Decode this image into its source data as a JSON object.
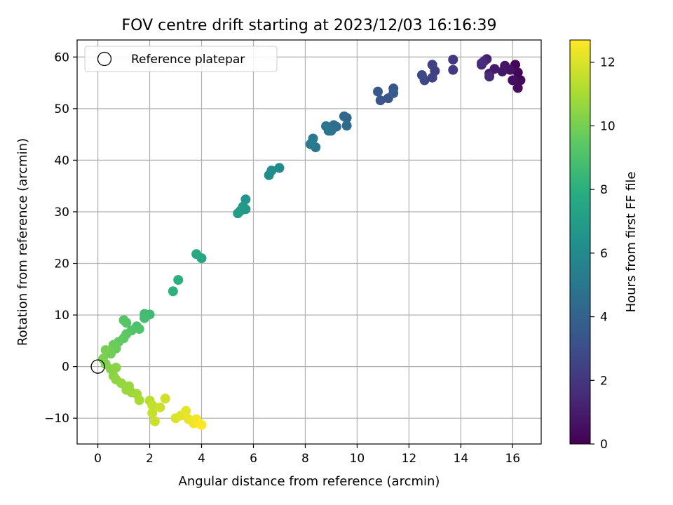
{
  "chart_data": {
    "type": "scatter",
    "title": "FOV centre drift starting at 2023/12/03 16:16:39",
    "xlabel": "Angular distance from reference (arcmin)",
    "ylabel": "Rotation from reference (arcmin)",
    "xlim": [
      -0.8,
      17.1
    ],
    "ylim": [
      -15,
      63.3
    ],
    "xticks": [
      0,
      2,
      4,
      6,
      8,
      10,
      12,
      14,
      16
    ],
    "yticks": [
      -10,
      0,
      10,
      20,
      30,
      40,
      50,
      60
    ],
    "ytick_labels": [
      "−10",
      "0",
      "10",
      "20",
      "30",
      "40",
      "50",
      "60"
    ],
    "grid": true,
    "legend": {
      "placement": "upper-left",
      "entries": [
        "Reference platepar"
      ]
    },
    "reference_point": {
      "x": 0,
      "y": 0,
      "label": "Reference platepar"
    },
    "colorbar": {
      "label": "Hours from first FF file",
      "colormap": "viridis",
      "range": [
        0,
        12.7
      ],
      "ticks": [
        0,
        2,
        4,
        6,
        8,
        10,
        12
      ]
    },
    "points": [
      {
        "x": 16.1,
        "y": 58.5,
        "c": 0.1
      },
      {
        "x": 16.2,
        "y": 57.0,
        "c": 0.2
      },
      {
        "x": 16.3,
        "y": 55.5,
        "c": 0.3
      },
      {
        "x": 16.2,
        "y": 54.0,
        "c": 0.4
      },
      {
        "x": 16.0,
        "y": 55.5,
        "c": 0.5
      },
      {
        "x": 15.9,
        "y": 57.5,
        "c": 0.6
      },
      {
        "x": 15.7,
        "y": 58.3,
        "c": 0.7
      },
      {
        "x": 15.6,
        "y": 57.2,
        "c": 0.8
      },
      {
        "x": 15.3,
        "y": 57.7,
        "c": 0.9
      },
      {
        "x": 15.1,
        "y": 56.8,
        "c": 1.0
      },
      {
        "x": 15.0,
        "y": 59.6,
        "c": 1.1
      },
      {
        "x": 14.8,
        "y": 58.5,
        "c": 1.2
      },
      {
        "x": 14.9,
        "y": 59.2,
        "c": 1.4
      },
      {
        "x": 15.1,
        "y": 56.2,
        "c": 1.5
      },
      {
        "x": 14.8,
        "y": 58.8,
        "c": 1.6
      },
      {
        "x": 13.7,
        "y": 59.5,
        "c": 2.0
      },
      {
        "x": 13.7,
        "y": 57.5,
        "c": 2.1
      },
      {
        "x": 13.0,
        "y": 57.3,
        "c": 2.3
      },
      {
        "x": 12.9,
        "y": 58.5,
        "c": 2.4
      },
      {
        "x": 12.9,
        "y": 56.0,
        "c": 2.5
      },
      {
        "x": 12.6,
        "y": 55.5,
        "c": 2.6
      },
      {
        "x": 12.5,
        "y": 56.5,
        "c": 2.8
      },
      {
        "x": 11.4,
        "y": 53.9,
        "c": 3.2
      },
      {
        "x": 11.2,
        "y": 52.0,
        "c": 3.3
      },
      {
        "x": 10.9,
        "y": 51.6,
        "c": 3.4
      },
      {
        "x": 10.8,
        "y": 53.3,
        "c": 3.5
      },
      {
        "x": 11.4,
        "y": 53.0,
        "c": 3.6
      },
      {
        "x": 9.6,
        "y": 48.2,
        "c": 4.2
      },
      {
        "x": 9.5,
        "y": 48.5,
        "c": 4.3
      },
      {
        "x": 9.6,
        "y": 46.7,
        "c": 4.4
      },
      {
        "x": 9.2,
        "y": 46.5,
        "c": 4.5
      },
      {
        "x": 9.1,
        "y": 46.8,
        "c": 4.6
      },
      {
        "x": 9.0,
        "y": 45.7,
        "c": 4.7
      },
      {
        "x": 8.9,
        "y": 45.7,
        "c": 4.8
      },
      {
        "x": 8.8,
        "y": 46.6,
        "c": 4.9
      },
      {
        "x": 8.4,
        "y": 42.5,
        "c": 5.0
      },
      {
        "x": 8.3,
        "y": 44.2,
        "c": 5.1
      },
      {
        "x": 8.2,
        "y": 43.1,
        "c": 5.2
      },
      {
        "x": 7.0,
        "y": 38.5,
        "c": 6.0
      },
      {
        "x": 6.7,
        "y": 38.0,
        "c": 6.1
      },
      {
        "x": 6.6,
        "y": 37.1,
        "c": 6.2
      },
      {
        "x": 5.7,
        "y": 32.4,
        "c": 6.6
      },
      {
        "x": 5.7,
        "y": 30.5,
        "c": 6.7
      },
      {
        "x": 5.6,
        "y": 31.0,
        "c": 6.8
      },
      {
        "x": 5.5,
        "y": 30.2,
        "c": 6.9
      },
      {
        "x": 5.4,
        "y": 29.7,
        "c": 7.0
      },
      {
        "x": 4.0,
        "y": 21.0,
        "c": 7.5
      },
      {
        "x": 3.8,
        "y": 21.8,
        "c": 7.6
      },
      {
        "x": 3.1,
        "y": 16.8,
        "c": 8.0
      },
      {
        "x": 2.9,
        "y": 14.6,
        "c": 8.1
      },
      {
        "x": 2.0,
        "y": 10.1,
        "c": 8.6
      },
      {
        "x": 1.8,
        "y": 10.2,
        "c": 8.7
      },
      {
        "x": 1.8,
        "y": 9.4,
        "c": 8.8
      },
      {
        "x": 1.5,
        "y": 7.8,
        "c": 9.0
      },
      {
        "x": 1.6,
        "y": 7.3,
        "c": 9.1
      },
      {
        "x": 1.3,
        "y": 7.0,
        "c": 9.2
      },
      {
        "x": 1.1,
        "y": 8.5,
        "c": 9.3
      },
      {
        "x": 1.0,
        "y": 9.0,
        "c": 9.3
      },
      {
        "x": 1.1,
        "y": 6.3,
        "c": 9.4
      },
      {
        "x": 1.0,
        "y": 5.5,
        "c": 9.5
      },
      {
        "x": 0.8,
        "y": 4.8,
        "c": 9.6
      },
      {
        "x": 0.7,
        "y": 3.5,
        "c": 9.7
      },
      {
        "x": 0.6,
        "y": 4.2,
        "c": 9.8
      },
      {
        "x": 0.5,
        "y": 2.5,
        "c": 9.9
      },
      {
        "x": 0.3,
        "y": 3.2,
        "c": 10.0
      },
      {
        "x": 0.2,
        "y": 1.5,
        "c": 10.1
      },
      {
        "x": 0.3,
        "y": 0.5,
        "c": 10.2
      },
      {
        "x": 0.5,
        "y": -0.5,
        "c": 10.3
      },
      {
        "x": 0.7,
        "y": -0.2,
        "c": 10.4
      },
      {
        "x": 0.6,
        "y": -1.8,
        "c": 10.4
      },
      {
        "x": 0.7,
        "y": -2.5,
        "c": 10.5
      },
      {
        "x": 0.9,
        "y": -3.2,
        "c": 10.6
      },
      {
        "x": 1.1,
        "y": -4.5,
        "c": 10.7
      },
      {
        "x": 1.2,
        "y": -3.8,
        "c": 10.7
      },
      {
        "x": 1.3,
        "y": -5.0,
        "c": 10.8
      },
      {
        "x": 1.5,
        "y": -5.3,
        "c": 10.9
      },
      {
        "x": 1.6,
        "y": -6.5,
        "c": 11.0
      },
      {
        "x": 2.0,
        "y": -6.6,
        "c": 11.4
      },
      {
        "x": 2.1,
        "y": -7.5,
        "c": 11.5
      },
      {
        "x": 2.1,
        "y": -9.0,
        "c": 11.6
      },
      {
        "x": 2.2,
        "y": -10.6,
        "c": 11.7
      },
      {
        "x": 2.4,
        "y": -7.9,
        "c": 11.7
      },
      {
        "x": 2.6,
        "y": -6.2,
        "c": 11.8
      },
      {
        "x": 3.0,
        "y": -10.0,
        "c": 12.0
      },
      {
        "x": 3.2,
        "y": -9.5,
        "c": 12.1
      },
      {
        "x": 3.4,
        "y": -8.6,
        "c": 12.2
      },
      {
        "x": 3.5,
        "y": -10.2,
        "c": 12.3
      },
      {
        "x": 3.7,
        "y": -11.0,
        "c": 12.4
      },
      {
        "x": 3.8,
        "y": -10.2,
        "c": 12.5
      },
      {
        "x": 3.9,
        "y": -11.0,
        "c": 12.6
      },
      {
        "x": 4.0,
        "y": -11.3,
        "c": 12.7
      }
    ]
  }
}
